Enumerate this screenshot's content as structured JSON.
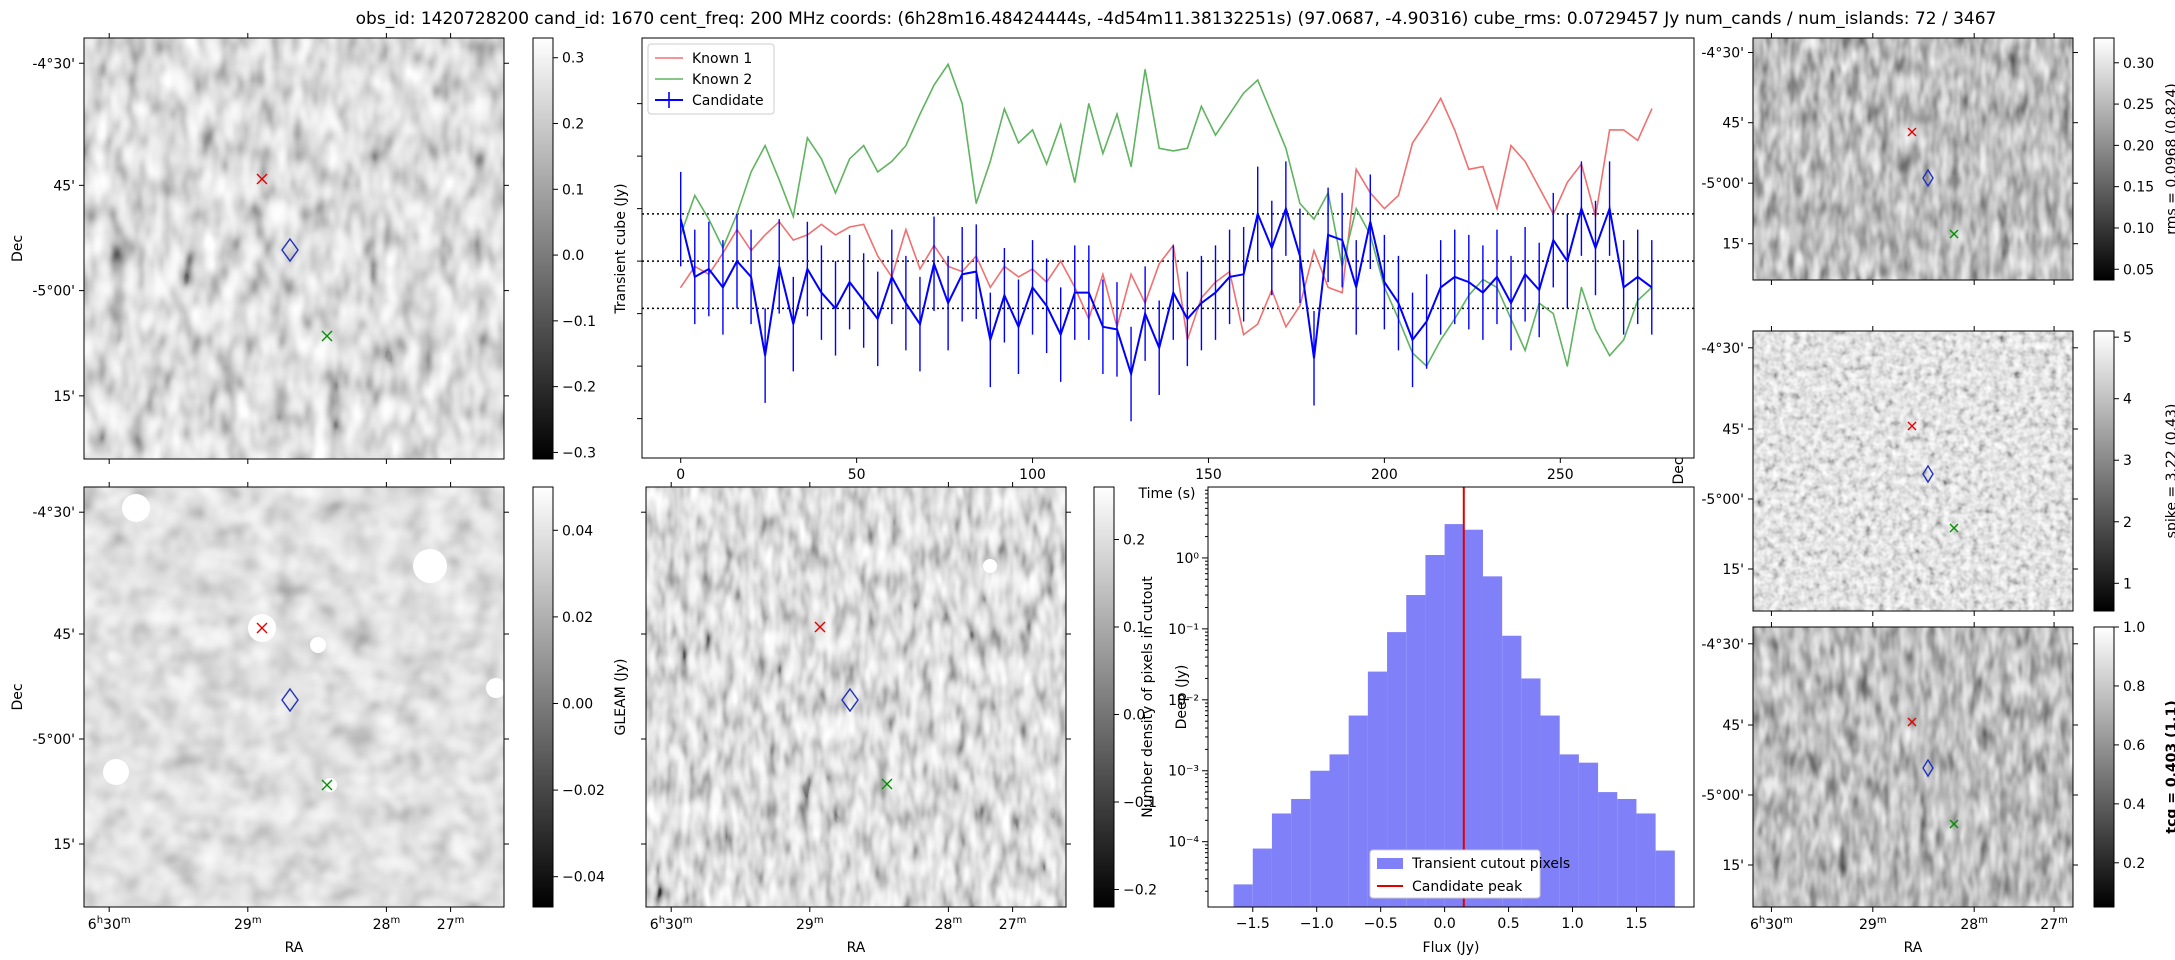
{
  "figure_title": "obs_id: 1420728200 cand_id: 1670 cent_freq: 200 MHz coords: (6h28m16.48424444s, -4d54m11.38132251s) (97.0687, -4.90316) cube_rms: 0.0729457 Jy num_cands / num_islands: 72 / 3467",
  "sky_axes": {
    "xlabel": "RA",
    "ylabel": "Dec",
    "ra_ticks": [
      "6h30m",
      "29m",
      "28m",
      "27m"
    ],
    "dec_ticks": [
      "-4°30'",
      "45'",
      "-5°00'",
      "15'"
    ]
  },
  "colors": {
    "candidate": "#0000ff",
    "known1": "#f07070",
    "known2": "#5fb45f",
    "hist_fill": "#8080f8",
    "peak_line": "#e00000",
    "marker_red": "#e00000",
    "marker_green": "#009000",
    "marker_blue": "#2030c0"
  },
  "panels": {
    "transient": {
      "cbar_label": "Transient cube (Jy)",
      "cbar_ticks": [
        "0.3",
        "0.2",
        "0.1",
        "0.0",
        "−0.1",
        "−0.2",
        "−0.3"
      ],
      "vmin": -0.31,
      "vmax": 0.33
    },
    "gleam": {
      "cbar_label": "GLEAM (Jy)",
      "cbar_ticks": [
        "0.04",
        "0.02",
        "0.00",
        "−0.02",
        "−0.04"
      ],
      "vmin": -0.047,
      "vmax": 0.05
    },
    "deep": {
      "cbar_label": "Deep (Jy)",
      "cbar_ticks": [
        "0.2",
        "0.1",
        "0.0",
        "−0.1",
        "−0.2"
      ],
      "vmin": -0.22,
      "vmax": 0.26
    },
    "rms": {
      "cbar_label": "rms = 0.0968 (0.824)",
      "cbar_ticks": [
        "0.30",
        "0.25",
        "0.20",
        "0.15",
        "0.10",
        "0.05"
      ],
      "vmin": 0.037,
      "vmax": 0.33
    },
    "spike": {
      "cbar_label": "spike = 3.22 (0.43)",
      "cbar_ticks": [
        "5",
        "4",
        "3",
        "2",
        "1"
      ],
      "vmin": 0.55,
      "vmax": 5.1
    },
    "tcg": {
      "cbar_label": "tcg = 0.403 (1.1)",
      "cbar_ticks": [
        "1.0",
        "0.8",
        "0.6",
        "0.4",
        "0.2"
      ],
      "vmin": 0.05,
      "vmax": 1.0
    }
  },
  "chart_data": [
    {
      "type": "line",
      "xlabel": "Time (s)",
      "x_ticks": [
        "0",
        "50",
        "100",
        "150",
        "200",
        "250"
      ],
      "xlim": [
        -11,
        288
      ],
      "ylim": [
        -0.75,
        0.85
      ],
      "hlines": [
        0.18,
        0.0,
        -0.18
      ],
      "legend": [
        "Known 1",
        "Known 2",
        "Candidate"
      ],
      "legend_position": "upper-left",
      "x": [
        0,
        4,
        8,
        12,
        16,
        20,
        24,
        28,
        32,
        36,
        40,
        44,
        48,
        52,
        56,
        60,
        64,
        68,
        72,
        76,
        80,
        84,
        88,
        92,
        96,
        100,
        104,
        108,
        112,
        116,
        120,
        124,
        128,
        132,
        136,
        140,
        144,
        148,
        152,
        156,
        160,
        164,
        168,
        172,
        176,
        180,
        184,
        188,
        192,
        196,
        200,
        204,
        208,
        212,
        216,
        220,
        224,
        228,
        232,
        236,
        240,
        244,
        248,
        252,
        256,
        260,
        264,
        268,
        272,
        276
      ],
      "series": [
        {
          "name": "Known 1",
          "values": [
            -0.1,
            -0.02,
            -0.05,
            0.03,
            0.12,
            0.04,
            0.1,
            0.15,
            0.08,
            0.1,
            0.14,
            0.1,
            0.13,
            0.14,
            0.02,
            -0.06,
            0.12,
            -0.03,
            0.06,
            -0.02,
            -0.04,
            0.02,
            -0.1,
            -0.02,
            -0.06,
            -0.03,
            -0.08,
            0.0,
            -0.1,
            -0.22,
            -0.05,
            -0.25,
            -0.05,
            -0.16,
            -0.01,
            0.06,
            -0.3,
            -0.14,
            -0.08,
            -0.04,
            -0.28,
            -0.24,
            -0.11,
            -0.25,
            -0.17,
            0.04,
            -0.1,
            -0.12,
            0.35,
            0.26,
            0.2,
            0.25,
            0.45,
            0.53,
            0.62,
            0.5,
            0.35,
            0.36,
            0.2,
            0.44,
            0.38,
            0.28,
            0.18,
            0.3,
            0.37,
            0.17,
            0.5,
            0.5,
            0.46,
            0.58
          ]
        },
        {
          "name": "Known 2",
          "values": [
            0.1,
            0.25,
            0.16,
            0.05,
            0.18,
            0.34,
            0.44,
            0.31,
            0.17,
            0.47,
            0.39,
            0.26,
            0.39,
            0.44,
            0.34,
            0.38,
            0.44,
            0.56,
            0.67,
            0.75,
            0.6,
            0.22,
            0.38,
            0.58,
            0.45,
            0.5,
            0.37,
            0.52,
            0.3,
            0.6,
            0.41,
            0.56,
            0.36,
            0.73,
            0.43,
            0.42,
            0.43,
            0.59,
            0.48,
            0.56,
            0.64,
            0.69,
            0.56,
            0.43,
            0.22,
            0.16,
            0.26,
            -0.02,
            0.2,
            0.1,
            -0.1,
            -0.22,
            -0.35,
            -0.4,
            -0.3,
            -0.22,
            -0.13,
            -0.07,
            -0.1,
            -0.22,
            -0.34,
            -0.16,
            -0.2,
            -0.4,
            -0.1,
            -0.26,
            -0.36,
            -0.3,
            -0.15,
            -0.1
          ]
        },
        {
          "name": "Candidate",
          "values": [
            0.16,
            -0.06,
            -0.03,
            -0.1,
            0.0,
            -0.06,
            -0.36,
            -0.02,
            -0.24,
            -0.03,
            -0.12,
            -0.18,
            -0.08,
            -0.15,
            -0.22,
            -0.06,
            -0.16,
            -0.24,
            -0.01,
            -0.16,
            -0.05,
            -0.04,
            -0.3,
            -0.13,
            -0.25,
            -0.1,
            -0.17,
            -0.28,
            -0.12,
            -0.12,
            -0.25,
            -0.26,
            -0.43,
            -0.2,
            -0.33,
            -0.12,
            -0.22,
            -0.16,
            -0.12,
            -0.06,
            -0.05,
            0.18,
            0.05,
            0.2,
            0.02,
            -0.37,
            0.1,
            0.08,
            -0.1,
            0.15,
            -0.08,
            -0.16,
            -0.3,
            -0.23,
            -0.1,
            -0.06,
            -0.08,
            -0.12,
            -0.06,
            -0.16,
            -0.05,
            -0.11,
            0.08,
            0.0,
            0.2,
            0.05,
            0.2,
            -0.1,
            -0.06,
            -0.1
          ],
          "yerr": 0.18
        }
      ]
    },
    {
      "type": "bar",
      "subtype": "histogram",
      "xlabel": "Flux (Jy)",
      "ylabel": "Number density of pixels in cutout",
      "yscale": "log",
      "x_ticks": [
        "−1.5",
        "−1.0",
        "−0.5",
        "0.0",
        "0.5",
        "1.0",
        "1.5"
      ],
      "y_ticks": [
        "10⁰",
        "10⁻¹",
        "10⁻²",
        "10⁻³",
        "10⁻⁴"
      ],
      "xlim": [
        -1.85,
        1.95
      ],
      "ylim": [
        1.2e-05,
        10
      ],
      "bin_edges": [
        -1.65,
        -1.5,
        -1.35,
        -1.2,
        -1.05,
        -0.9,
        -0.75,
        -0.6,
        -0.45,
        -0.3,
        -0.15,
        0.0,
        0.15,
        0.3,
        0.45,
        0.6,
        0.75,
        0.9,
        1.05,
        1.2,
        1.35,
        1.5,
        1.65,
        1.8
      ],
      "values": [
        2.5e-05,
        8e-05,
        0.00025,
        0.0004,
        0.001,
        0.0017,
        0.006,
        0.025,
        0.09,
        0.3,
        1.1,
        3.0,
        2.5,
        0.55,
        0.08,
        0.02,
        0.006,
        0.0017,
        0.0013,
        0.0005,
        0.0004,
        0.00025,
        7.5e-05
      ],
      "candidate_peak": 0.15,
      "legend": [
        "Transient cutout pixels",
        "Candidate peak"
      ],
      "legend_position": "lower-center"
    }
  ]
}
